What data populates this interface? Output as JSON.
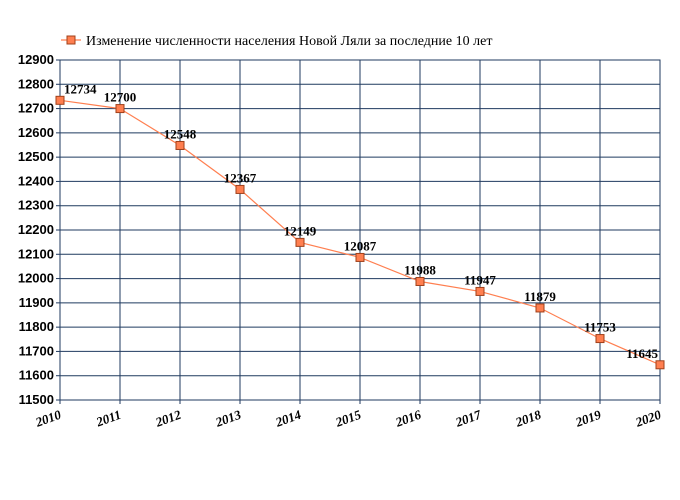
{
  "chart_data": {
    "type": "line",
    "title": "",
    "xlabel": "",
    "ylabel": "",
    "x": [
      "2010",
      "2011",
      "2012",
      "2013",
      "2014",
      "2015",
      "2016",
      "2017",
      "2018",
      "2019",
      "2020"
    ],
    "series": [
      {
        "name": "Изменение численности населения Новой Ляли за последние 10 лет",
        "values": [
          12734,
          12700,
          12548,
          12367,
          12149,
          12087,
          11988,
          11947,
          11879,
          11753,
          11645
        ]
      }
    ],
    "ylim": [
      11500,
      12900
    ],
    "yticks": [
      "11500",
      "11600",
      "11700",
      "11800",
      "11900",
      "12000",
      "12100",
      "12200",
      "12300",
      "12400",
      "12500",
      "12600",
      "12700",
      "12800",
      "12900"
    ],
    "grid": true,
    "legend_position": "top-left",
    "data_labels": true,
    "colors": {
      "line": "#ff7f50",
      "marker_fill": "#ff7f50",
      "marker_stroke": "#a0401a",
      "grid": "#1f3a5f"
    }
  }
}
